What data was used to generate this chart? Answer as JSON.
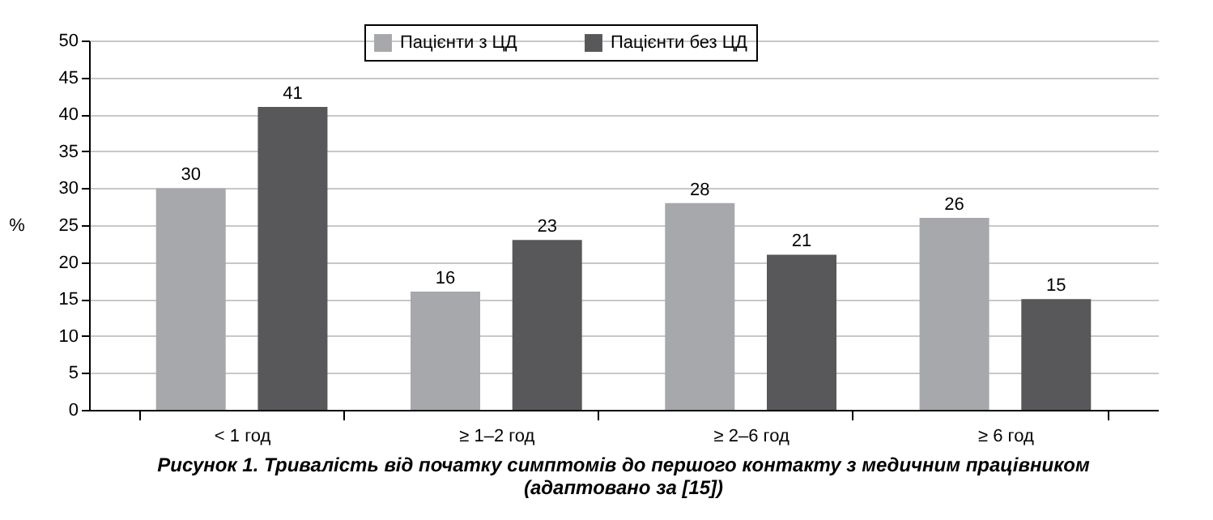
{
  "chart_data": {
    "type": "bar",
    "title": "Рисунок 1. Тривалість від початку симптомів до першого контакту з медичним працівником",
    "subtitle": "(адаптовано за [15])",
    "ylabel": "%",
    "categories": [
      "< 1 год",
      "≥ 1–2 год",
      "≥ 2–6 год",
      "≥ 6 год"
    ],
    "series": [
      {
        "name": "Пацієнти з ЦД",
        "color": "#a7a8ab",
        "values": [
          30,
          16,
          28,
          26
        ]
      },
      {
        "name": "Пацієнти без ЦД",
        "color": "#58585a",
        "values": [
          41,
          23,
          21,
          15
        ]
      }
    ],
    "ylim": [
      0,
      50
    ],
    "yticks": [
      0,
      5,
      10,
      15,
      20,
      25,
      30,
      35,
      40,
      45,
      50
    ],
    "grid": "y",
    "legend": "top",
    "data_labels": true
  }
}
